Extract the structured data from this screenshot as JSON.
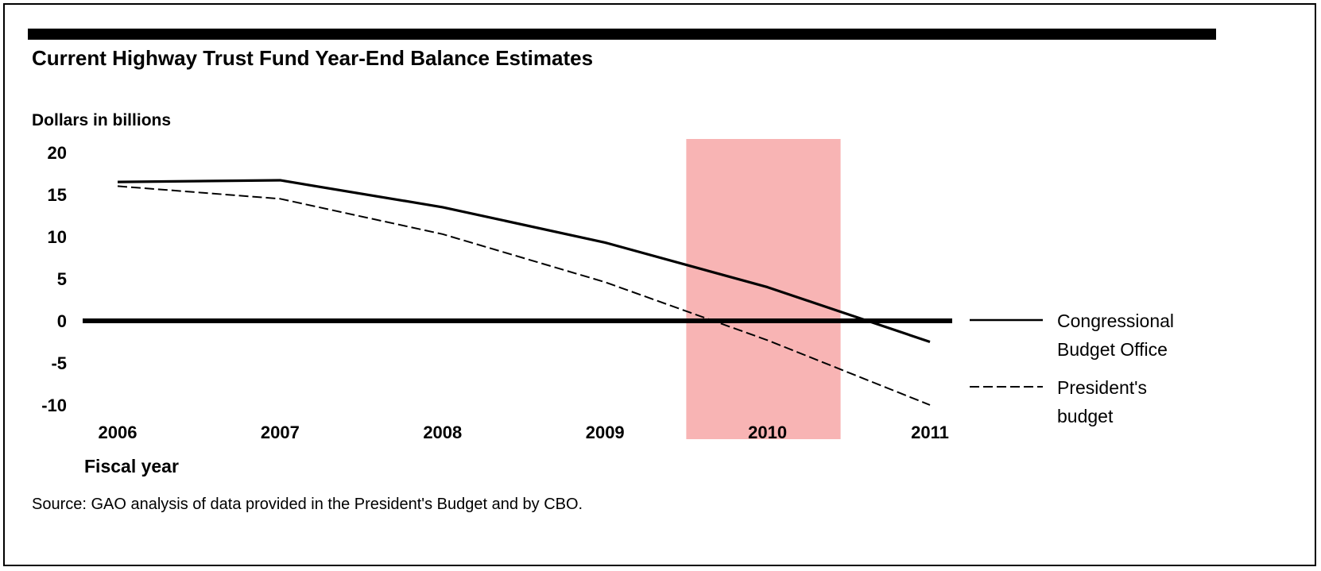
{
  "chart_data": {
    "type": "line",
    "title": "Current Highway Trust Fund Year-End Balance Estimates",
    "ylabel": "Dollars in billions",
    "xlabel": "Fiscal year",
    "source": "Source: GAO analysis of data provided in the President's Budget and by CBO.",
    "x": [
      2006,
      2007,
      2008,
      2009,
      2010,
      2011
    ],
    "y_ticks": [
      20,
      15,
      10,
      5,
      0,
      -5,
      -10
    ],
    "ylim": [
      -10,
      20
    ],
    "series": [
      {
        "name": "Congressional Budget Office",
        "name_lines": [
          "Congressional",
          "Budget Office"
        ],
        "style": "solid",
        "values": [
          16.5,
          16.7,
          13.5,
          9.3,
          4.0,
          -2.5
        ]
      },
      {
        "name": "President's budget",
        "name_lines": [
          "President's",
          "budget"
        ],
        "style": "dashed",
        "values": [
          16.0,
          14.5,
          10.3,
          4.6,
          -2.3,
          -10.0
        ]
      }
    ],
    "highlight": {
      "from": 2009.5,
      "to": 2010.45,
      "color": "#f8b4b4"
    },
    "zero_line": true,
    "grid": false,
    "legend_position": "right"
  }
}
